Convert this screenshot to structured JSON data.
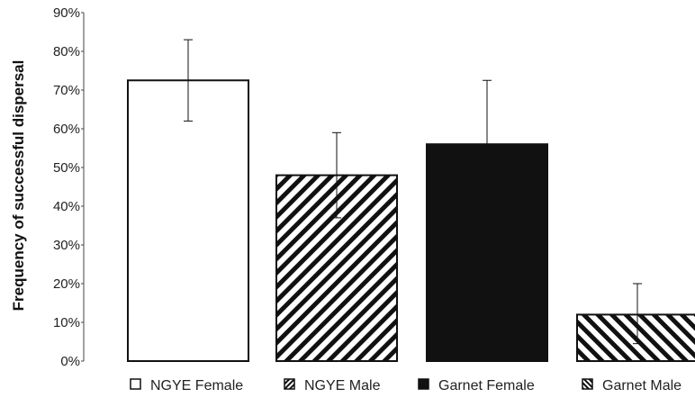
{
  "chart_data": {
    "type": "bar",
    "title": "",
    "xlabel": "",
    "ylabel": "Frequency of successful dispersal",
    "ylim": [
      0,
      0.9
    ],
    "y_ticks": [
      "0%",
      "10%",
      "20%",
      "30%",
      "40%",
      "50%",
      "60%",
      "70%",
      "80%",
      "90%"
    ],
    "grid": false,
    "legend_position": "bottom",
    "categories": [
      "NGYE Female",
      "NGYE Male",
      "Garnet Female",
      "Garnet Male"
    ],
    "values": [
      0.725,
      0.48,
      0.56,
      0.12
    ],
    "error_upper": [
      0.83,
      0.59,
      0.725,
      0.2
    ],
    "error_lower": [
      0.62,
      0.37,
      0.56,
      0.045
    ],
    "fills": [
      "white",
      "diagonal-hatch-back",
      "black",
      "diagonal-hatch-forward"
    ]
  }
}
